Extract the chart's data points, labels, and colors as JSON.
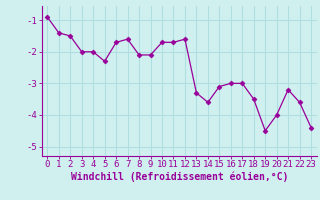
{
  "hours": [
    0,
    1,
    2,
    3,
    4,
    5,
    6,
    7,
    8,
    9,
    10,
    11,
    12,
    13,
    14,
    15,
    16,
    17,
    18,
    19,
    20,
    21,
    22,
    23
  ],
  "values": [
    -0.9,
    -1.4,
    -1.5,
    -2.0,
    -2.0,
    -2.3,
    -1.7,
    -1.6,
    -2.1,
    -2.1,
    -1.7,
    -1.7,
    -1.6,
    -3.3,
    -3.6,
    -3.1,
    -3.0,
    -3.0,
    -3.5,
    -4.5,
    -4.0,
    -3.2,
    -3.6,
    -4.4
  ],
  "line_color": "#990099",
  "marker": "D",
  "marker_size": 2.5,
  "bg_color": "#d0f0f0",
  "grid_color": "#b0dede",
  "ylim": [
    -5.3,
    -0.55
  ],
  "yticks": [
    -5,
    -4,
    -3,
    -2,
    -1
  ],
  "xlim": [
    -0.5,
    23.5
  ],
  "xlabel": "Windchill (Refroidissement éolien,°C)",
  "xlabel_fontsize": 7.0,
  "tick_fontsize": 6.5
}
